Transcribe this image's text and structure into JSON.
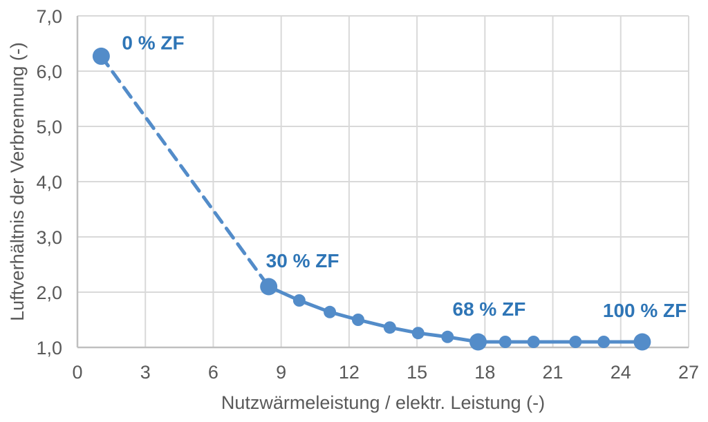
{
  "figure": {
    "background": "#FFFFFF"
  },
  "chart_data": {
    "type": "line",
    "title": "",
    "xlabel": "Nutzwärmeleistung / elektr. Leistung (-)",
    "ylabel": "Luftverhältnis der Verbrennung (-)",
    "xlim": [
      0,
      27
    ],
    "ylim": [
      1.0,
      7.0
    ],
    "x_ticks": [
      0,
      3,
      6,
      9,
      12,
      15,
      18,
      21,
      24,
      27
    ],
    "x_tick_labels": [
      "0",
      "3",
      "6",
      "9",
      "12",
      "15",
      "18",
      "21",
      "24",
      "27"
    ],
    "y_ticks": [
      1,
      2,
      3,
      4,
      5,
      6,
      7
    ],
    "y_tick_labels": [
      "1,0",
      "2,0",
      "3,0",
      "4,0",
      "5,0",
      "6,0",
      "7,0"
    ],
    "grid": true,
    "legend_position": "none",
    "colors": {
      "series_blue": "#538CC9",
      "annotation_blue": "#2E75B6",
      "axis_text_gray": "#595959",
      "gridline_gray": "#D9D9D9",
      "axis_line_gray": "#BFBFBF",
      "background": "#FFFFFF"
    },
    "series": [
      {
        "name": "Luftverhältnis der Verbrennung",
        "dashed_segment_point_indices": [
          0,
          1
        ],
        "points": [
          {
            "x": 1.05,
            "y": 6.27,
            "big": true,
            "label": "0 % ZF",
            "label_dx": 30,
            "label_dy": -10
          },
          {
            "x": 8.45,
            "y": 2.1,
            "big": true,
            "label": "30 % ZF",
            "label_dx": -4,
            "label_dy": -28
          },
          {
            "x": 9.8,
            "y": 1.85,
            "big": false
          },
          {
            "x": 11.15,
            "y": 1.64,
            "big": false
          },
          {
            "x": 12.4,
            "y": 1.5,
            "big": false
          },
          {
            "x": 13.8,
            "y": 1.36,
            "big": false
          },
          {
            "x": 15.05,
            "y": 1.26,
            "big": false
          },
          {
            "x": 16.35,
            "y": 1.19,
            "big": false
          },
          {
            "x": 17.7,
            "y": 1.1,
            "big": true,
            "label": "68 % ZF",
            "label_dx": -37,
            "label_dy": -38
          },
          {
            "x": 18.9,
            "y": 1.1,
            "big": false
          },
          {
            "x": 20.15,
            "y": 1.1,
            "big": false
          },
          {
            "x": 22.0,
            "y": 1.1,
            "big": false
          },
          {
            "x": 23.25,
            "y": 1.1,
            "big": false
          },
          {
            "x": 24.95,
            "y": 1.1,
            "big": true,
            "label": "100 % ZF",
            "label_dx": -57,
            "label_dy": -36
          }
        ]
      }
    ]
  }
}
